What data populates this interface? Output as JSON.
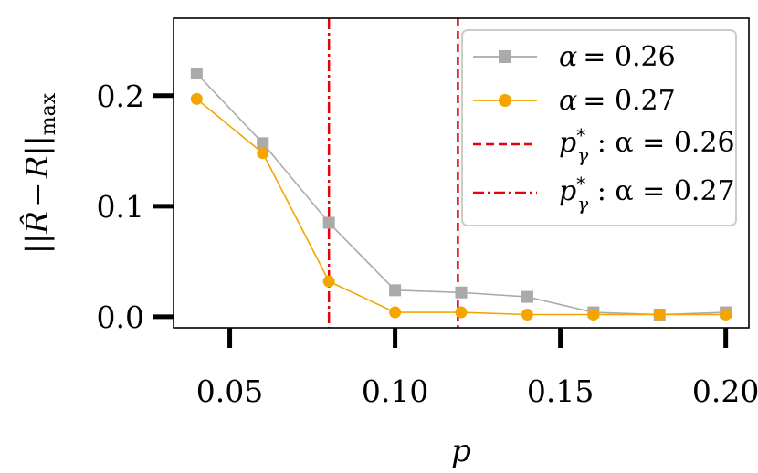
{
  "chart_data": {
    "type": "line",
    "title": "",
    "xlabel": "p",
    "ylabel": "||R̂ − R||max",
    "ylabel_parts": {
      "norm_open": "||",
      "rhat": "R̂",
      "minus": "−",
      "r": "R",
      "norm_close": "||",
      "sub": "max"
    },
    "x": [
      0.04,
      0.06,
      0.08,
      0.1,
      0.12,
      0.14,
      0.16,
      0.18,
      0.2
    ],
    "xlim": [
      0.033,
      0.207
    ],
    "ylim": [
      -0.01,
      0.27
    ],
    "xticks": [
      0.05,
      0.1,
      0.15,
      0.2
    ],
    "xtick_labels": [
      "0.05",
      "0.10",
      "0.15",
      "0.20"
    ],
    "yticks": [
      0.0,
      0.1,
      0.2
    ],
    "ytick_labels": [
      "0.0",
      "0.1",
      "0.2"
    ],
    "grid": false,
    "legend_position": "top-right",
    "series": [
      {
        "name": "α = 0.26",
        "label_alpha": "α",
        "label_value": "= 0.26",
        "color": "#aaaaaa",
        "marker": "square",
        "values": [
          0.22,
          0.157,
          0.085,
          0.024,
          0.022,
          0.018,
          0.004,
          0.002,
          0.004
        ]
      },
      {
        "name": "α = 0.27",
        "label_alpha": "α",
        "label_value": "= 0.27",
        "color": "#f5a500",
        "marker": "circle",
        "values": [
          0.197,
          0.148,
          0.032,
          0.004,
          0.004,
          0.002,
          0.002,
          0.002,
          0.002
        ]
      }
    ],
    "vlines": [
      {
        "name": "p*γ : α = 0.26",
        "label_p": "p",
        "label_sup": "*",
        "label_sub": "γ",
        "label_rest": " : α = 0.26",
        "x": 0.119,
        "color": "#e8000b",
        "style": "dashed"
      },
      {
        "name": "p*γ : α = 0.27",
        "label_p": "p",
        "label_sup": "*",
        "label_sub": "γ",
        "label_rest": " : α = 0.27",
        "x": 0.08,
        "color": "#e8000b",
        "style": "dashdot"
      }
    ]
  }
}
